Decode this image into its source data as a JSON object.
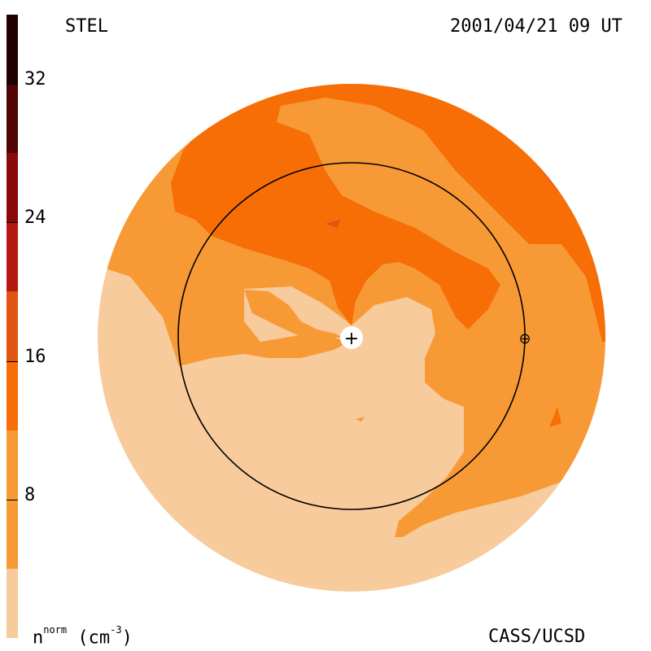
{
  "header": {
    "observatory": "STEL",
    "timestamp": "2001/04/21 09 UT"
  },
  "footer": {
    "credit": "CASS/UCSD",
    "units_symbol": "n",
    "units_super": "norm",
    "units_unit": " (cm",
    "units_exp": "-3",
    "units_close": ")"
  },
  "colorbar": {
    "range": [
      0,
      36
    ],
    "tick_labels": [
      "8",
      "16",
      "24",
      "32"
    ],
    "tick_values": [
      8,
      16,
      24,
      32
    ],
    "levels": [
      {
        "from": 0,
        "to": 4,
        "color": "#f7cb9b"
      },
      {
        "from": 4,
        "to": 12,
        "color": "#f79a36"
      },
      {
        "from": 12,
        "to": 16,
        "color": "#f76e06"
      },
      {
        "from": 16,
        "to": 20,
        "color": "#e25510"
      },
      {
        "from": 20,
        "to": 24,
        "color": "#b51a12"
      },
      {
        "from": 24,
        "to": 28,
        "color": "#8a0a08"
      },
      {
        "from": 28,
        "to": 32,
        "color": "#520404"
      },
      {
        "from": 32,
        "to": 36,
        "color": "#220000"
      }
    ]
  },
  "colors": {
    "low": "#f7cb9b",
    "mid": "#f79a36",
    "high": "#f76e06",
    "peak": "#e25510"
  },
  "markers": {
    "sun_symbol": "+",
    "earth_symbol": "⊕"
  }
}
